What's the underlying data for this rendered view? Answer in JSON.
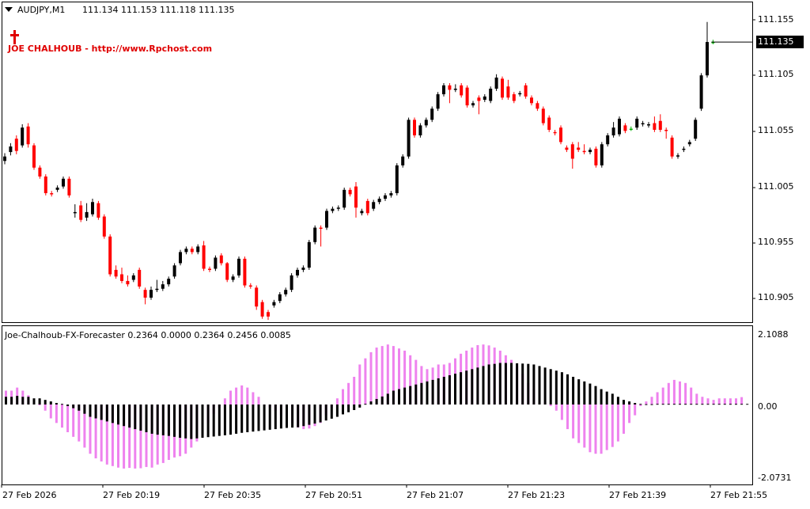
{
  "main_header": {
    "symbol_timeframe": "AUDJPY,M1",
    "ohlc": "111.134 111.153 111.118 111.135"
  },
  "watermark": {
    "text": "JOE CHALHOUB - http://www.Rpchost.com",
    "color": "#e00000",
    "icon": "cross-icon"
  },
  "price_axis": {
    "labels": [
      "111.155",
      "111.105",
      "111.055",
      "111.005",
      "110.955",
      "110.905"
    ],
    "current_price": "111.135"
  },
  "indicator": {
    "header": "Joe-Chalhoub-FX-Forecaster 0.2364 0.0000 0.2364 0.2456 0.0085",
    "scale_labels": [
      "2.1088",
      "0.00",
      "-2.0731"
    ]
  },
  "time_axis": {
    "labels": [
      "27 Feb 2026",
      "27 Feb 20:19",
      "27 Feb 20:35",
      "27 Feb 20:51",
      "27 Feb 21:07",
      "27 Feb 21:23",
      "27 Feb 21:39",
      "27 Feb 21:55"
    ]
  },
  "colors": {
    "bull_candle": "#000000",
    "bear_candle": "#ff0000",
    "doji_candle": "#00b000",
    "histogram_pink": "#ee82ee",
    "histogram_black": "#000000",
    "background": "#ffffff",
    "frame": "#000000"
  },
  "chart_data": [
    {
      "type": "candlestick",
      "title": "AUDJPY,M1",
      "price_range": [
        110.88,
        111.165
      ],
      "candles": [
        {
          "o": 111.028,
          "c": 111.032,
          "h": 111.035,
          "l": 111.025
        },
        {
          "o": 111.036,
          "c": 111.041,
          "h": 111.044,
          "l": 111.033
        },
        {
          "o": 111.048,
          "c": 111.037,
          "h": 111.051,
          "l": 111.034
        },
        {
          "o": 111.042,
          "c": 111.058,
          "h": 111.061,
          "l": 111.04
        },
        {
          "o": 111.059,
          "c": 111.043,
          "h": 111.062,
          "l": 111.04
        },
        {
          "o": 111.042,
          "c": 111.022,
          "h": 111.044,
          "l": 111.02
        },
        {
          "o": 111.022,
          "c": 111.014,
          "h": 111.024,
          "l": 111.012
        },
        {
          "o": 111.014,
          "c": 110.999,
          "h": 111.016,
          "l": 110.997
        },
        {
          "o": 110.999,
          "c": 110.998,
          "h": 111.001,
          "l": 110.996
        },
        {
          "o": 111.002,
          "c": 111.004,
          "h": 111.006,
          "l": 111.0
        },
        {
          "o": 111.005,
          "c": 111.012,
          "h": 111.014,
          "l": 111.003
        },
        {
          "o": 111.012,
          "c": 110.997,
          "h": 111.014,
          "l": 110.995
        },
        {
          "o": 110.981,
          "c": 110.982,
          "h": 110.989,
          "l": 110.977
        },
        {
          "o": 110.988,
          "c": 110.975,
          "h": 110.992,
          "l": 110.973
        },
        {
          "o": 110.977,
          "c": 110.982,
          "h": 110.99,
          "l": 110.974
        },
        {
          "o": 110.98,
          "c": 110.991,
          "h": 110.994,
          "l": 110.978
        },
        {
          "o": 110.99,
          "c": 110.977,
          "h": 110.992,
          "l": 110.975
        },
        {
          "o": 110.978,
          "c": 110.96,
          "h": 110.98,
          "l": 110.958
        },
        {
          "o": 110.96,
          "c": 110.926,
          "h": 110.962,
          "l": 110.924
        },
        {
          "o": 110.93,
          "c": 110.924,
          "h": 110.934,
          "l": 110.922
        },
        {
          "o": 110.926,
          "c": 110.92,
          "h": 110.932,
          "l": 110.918
        },
        {
          "o": 110.92,
          "c": 110.917,
          "h": 110.925,
          "l": 110.915
        },
        {
          "o": 110.921,
          "c": 110.925,
          "h": 110.927,
          "l": 110.919
        },
        {
          "o": 110.93,
          "c": 110.915,
          "h": 110.932,
          "l": 110.913
        },
        {
          "o": 110.912,
          "c": 110.905,
          "h": 110.914,
          "l": 110.899
        },
        {
          "o": 110.905,
          "c": 110.912,
          "h": 110.915,
          "l": 110.903
        },
        {
          "o": 110.912,
          "c": 110.913,
          "h": 110.921,
          "l": 110.91
        },
        {
          "o": 110.913,
          "c": 110.917,
          "h": 110.92,
          "l": 110.911
        },
        {
          "o": 110.917,
          "c": 110.922,
          "h": 110.924,
          "l": 110.915
        },
        {
          "o": 110.924,
          "c": 110.934,
          "h": 110.936,
          "l": 110.922
        },
        {
          "o": 110.936,
          "c": 110.946,
          "h": 110.948,
          "l": 110.934
        },
        {
          "o": 110.946,
          "c": 110.949,
          "h": 110.951,
          "l": 110.944
        },
        {
          "o": 110.949,
          "c": 110.946,
          "h": 110.951,
          "l": 110.944
        },
        {
          "o": 110.946,
          "c": 110.951,
          "h": 110.953,
          "l": 110.944
        },
        {
          "o": 110.952,
          "c": 110.931,
          "h": 110.956,
          "l": 110.929
        },
        {
          "o": 110.931,
          "c": 110.93,
          "h": 110.933,
          "l": 110.928
        },
        {
          "o": 110.931,
          "c": 110.941,
          "h": 110.943,
          "l": 110.929
        },
        {
          "o": 110.943,
          "c": 110.936,
          "h": 110.945,
          "l": 110.934
        },
        {
          "o": 110.936,
          "c": 110.921,
          "h": 110.937,
          "l": 110.919
        },
        {
          "o": 110.921,
          "c": 110.924,
          "h": 110.926,
          "l": 110.919
        },
        {
          "o": 110.925,
          "c": 110.94,
          "h": 110.942,
          "l": 110.923
        },
        {
          "o": 110.94,
          "c": 110.916,
          "h": 110.942,
          "l": 110.914
        },
        {
          "o": 110.916,
          "c": 110.915,
          "h": 110.918,
          "l": 110.913
        },
        {
          "o": 110.914,
          "c": 110.897,
          "h": 110.916,
          "l": 110.894
        },
        {
          "o": 110.901,
          "c": 110.888,
          "h": 110.903,
          "l": 110.886
        },
        {
          "o": 110.892,
          "c": 110.888,
          "h": 110.894,
          "l": 110.885
        },
        {
          "o": 110.898,
          "c": 110.901,
          "h": 110.903,
          "l": 110.896
        },
        {
          "o": 110.902,
          "c": 110.908,
          "h": 110.91,
          "l": 110.9
        },
        {
          "o": 110.908,
          "c": 110.912,
          "h": 110.914,
          "l": 110.906
        },
        {
          "o": 110.912,
          "c": 110.925,
          "h": 110.927,
          "l": 110.91
        },
        {
          "o": 110.925,
          "c": 110.93,
          "h": 110.932,
          "l": 110.923
        },
        {
          "o": 110.93,
          "c": 110.932,
          "h": 110.934,
          "l": 110.928
        },
        {
          "o": 110.932,
          "c": 110.955,
          "h": 110.957,
          "l": 110.93
        },
        {
          "o": 110.955,
          "c": 110.968,
          "h": 110.97,
          "l": 110.953
        },
        {
          "o": 110.968,
          "c": 110.967,
          "h": 110.97,
          "l": 110.951
        },
        {
          "o": 110.968,
          "c": 110.983,
          "h": 110.985,
          "l": 110.966
        },
        {
          "o": 110.983,
          "c": 110.985,
          "h": 110.987,
          "l": 110.981
        },
        {
          "o": 110.985,
          "c": 110.986,
          "h": 110.988,
          "l": 110.983
        },
        {
          "o": 110.986,
          "c": 111.002,
          "h": 111.004,
          "l": 110.984
        },
        {
          "o": 111.002,
          "c": 110.998,
          "h": 111.004,
          "l": 110.996
        },
        {
          "o": 111.005,
          "c": 110.986,
          "h": 111.009,
          "l": 110.977
        },
        {
          "o": 110.981,
          "c": 110.983,
          "h": 110.985,
          "l": 110.979
        },
        {
          "o": 110.992,
          "c": 110.981,
          "h": 110.994,
          "l": 110.979
        },
        {
          "o": 110.985,
          "c": 110.991,
          "h": 110.993,
          "l": 110.983
        },
        {
          "o": 110.991,
          "c": 110.994,
          "h": 110.996,
          "l": 110.989
        },
        {
          "o": 110.994,
          "c": 110.997,
          "h": 110.999,
          "l": 110.992
        },
        {
          "o": 110.997,
          "c": 110.999,
          "h": 111.001,
          "l": 110.995
        },
        {
          "o": 110.999,
          "c": 111.024,
          "h": 111.026,
          "l": 110.997
        },
        {
          "o": 111.024,
          "c": 111.032,
          "h": 111.034,
          "l": 111.022
        },
        {
          "o": 111.032,
          "c": 111.065,
          "h": 111.067,
          "l": 111.03
        },
        {
          "o": 111.065,
          "c": 111.051,
          "h": 111.067,
          "l": 111.049
        },
        {
          "o": 111.051,
          "c": 111.06,
          "h": 111.062,
          "l": 111.049
        },
        {
          "o": 111.06,
          "c": 111.065,
          "h": 111.067,
          "l": 111.058
        },
        {
          "o": 111.065,
          "c": 111.075,
          "h": 111.077,
          "l": 111.063
        },
        {
          "o": 111.075,
          "c": 111.088,
          "h": 111.09,
          "l": 111.073
        },
        {
          "o": 111.088,
          "c": 111.096,
          "h": 111.098,
          "l": 111.086
        },
        {
          "o": 111.096,
          "c": 111.092,
          "h": 111.098,
          "l": 111.08
        },
        {
          "o": 111.092,
          "c": 111.093,
          "h": 111.097,
          "l": 111.09
        },
        {
          "o": 111.096,
          "c": 111.087,
          "h": 111.098,
          "l": 111.085
        },
        {
          "o": 111.094,
          "c": 111.078,
          "h": 111.096,
          "l": 111.076
        },
        {
          "o": 111.078,
          "c": 111.08,
          "h": 111.082,
          "l": 111.076
        },
        {
          "o": 111.085,
          "c": 111.082,
          "h": 111.087,
          "l": 111.07
        },
        {
          "o": 111.083,
          "c": 111.086,
          "h": 111.088,
          "l": 111.081
        },
        {
          "o": 111.082,
          "c": 111.093,
          "h": 111.095,
          "l": 111.08
        },
        {
          "o": 111.093,
          "c": 111.103,
          "h": 111.106,
          "l": 111.091
        },
        {
          "o": 111.102,
          "c": 111.085,
          "h": 111.104,
          "l": 111.083
        },
        {
          "o": 111.095,
          "c": 111.085,
          "h": 111.101,
          "l": 111.083
        },
        {
          "o": 111.088,
          "c": 111.082,
          "h": 111.09,
          "l": 111.08
        },
        {
          "o": 111.088,
          "c": 111.089,
          "h": 111.091,
          "l": 111.086
        },
        {
          "o": 111.096,
          "c": 111.086,
          "h": 111.098,
          "l": 111.084
        },
        {
          "o": 111.085,
          "c": 111.08,
          "h": 111.087,
          "l": 111.078
        },
        {
          "o": 111.08,
          "c": 111.075,
          "h": 111.082,
          "l": 111.073
        },
        {
          "o": 111.075,
          "c": 111.062,
          "h": 111.077,
          "l": 111.06
        },
        {
          "o": 111.067,
          "c": 111.056,
          "h": 111.069,
          "l": 111.054
        },
        {
          "o": 111.054,
          "c": 111.053,
          "h": 111.056,
          "l": 111.051
        },
        {
          "o": 111.058,
          "c": 111.045,
          "h": 111.06,
          "l": 111.043
        },
        {
          "o": 111.04,
          "c": 111.038,
          "h": 111.042,
          "l": 111.036
        },
        {
          "o": 111.043,
          "c": 111.03,
          "h": 111.045,
          "l": 111.021
        },
        {
          "o": 111.04,
          "c": 111.038,
          "h": 111.045,
          "l": 111.036
        },
        {
          "o": 111.037,
          "c": 111.036,
          "h": 111.043,
          "l": 111.034
        },
        {
          "o": 111.036,
          "c": 111.038,
          "h": 111.04,
          "l": 111.034
        },
        {
          "o": 111.039,
          "c": 111.024,
          "h": 111.041,
          "l": 111.022
        },
        {
          "o": 111.024,
          "c": 111.043,
          "h": 111.045,
          "l": 111.022
        },
        {
          "o": 111.043,
          "c": 111.051,
          "h": 111.053,
          "l": 111.041
        },
        {
          "o": 111.051,
          "c": 111.058,
          "h": 111.063,
          "l": 111.049
        },
        {
          "o": 111.052,
          "c": 111.066,
          "h": 111.068,
          "l": 111.05
        },
        {
          "o": 111.06,
          "c": 111.055,
          "h": 111.062,
          "l": 111.053
        },
        {
          "o": 111.057,
          "c": 111.057,
          "h": 111.059,
          "l": 111.055
        },
        {
          "o": 111.058,
          "c": 111.066,
          "h": 111.068,
          "l": 111.056
        },
        {
          "o": 111.061,
          "c": 111.062,
          "h": 111.064,
          "l": 111.059
        },
        {
          "o": 111.06,
          "c": 111.061,
          "h": 111.063,
          "l": 111.058
        },
        {
          "o": 111.062,
          "c": 111.056,
          "h": 111.068,
          "l": 111.054
        },
        {
          "o": 111.064,
          "c": 111.056,
          "h": 111.07,
          "l": 111.054
        },
        {
          "o": 111.056,
          "c": 111.055,
          "h": 111.058,
          "l": 111.048
        },
        {
          "o": 111.049,
          "c": 111.032,
          "h": 111.051,
          "l": 111.03
        },
        {
          "o": 111.032,
          "c": 111.033,
          "h": 111.035,
          "l": 111.03
        },
        {
          "o": 111.038,
          "c": 111.039,
          "h": 111.041,
          "l": 111.036
        },
        {
          "o": 111.043,
          "c": 111.045,
          "h": 111.047,
          "l": 111.041
        },
        {
          "o": 111.048,
          "c": 111.065,
          "h": 111.067,
          "l": 111.046
        },
        {
          "o": 111.075,
          "c": 111.105,
          "h": 111.107,
          "l": 111.073
        },
        {
          "o": 111.105,
          "c": 111.135,
          "h": 111.153,
          "l": 111.103
        },
        {
          "o": 111.135,
          "c": 111.135,
          "h": 111.137,
          "l": 111.133
        }
      ]
    },
    {
      "type": "histogram",
      "title": "Joe-Chalhoub-FX-Forecaster",
      "ylim": [
        -2.0731,
        2.1088
      ],
      "pink": [
        0.45,
        0.45,
        0.55,
        0.45,
        0.3,
        0.1,
        0,
        -0.2,
        -0.45,
        -0.6,
        -0.75,
        -0.9,
        -1.05,
        -1.2,
        -1.4,
        -1.6,
        -1.75,
        -1.85,
        -1.95,
        -2.0,
        -2.05,
        -2.08,
        -2.06,
        -2.08,
        -2.07,
        -2.03,
        -2.05,
        -1.95,
        -1.9,
        -1.8,
        -1.72,
        -1.68,
        -1.6,
        -1.4,
        -1.2,
        -0.9,
        -0.6,
        -0.3,
        -0.1,
        0.2,
        0.45,
        0.55,
        0.62,
        0.55,
        0.4,
        0.25,
        0,
        -0.1,
        -0.2,
        -0.35,
        -0.5,
        -0.6,
        -0.75,
        -0.8,
        -0.78,
        -0.7,
        -0.6,
        -0.35,
        -0.1,
        0.2,
        0.5,
        0.7,
        0.9,
        1.3,
        1.5,
        1.7,
        1.85,
        1.9,
        1.95,
        1.9,
        1.82,
        1.75,
        1.6,
        1.45,
        1.25,
        1.15,
        1.2,
        1.3,
        1.3,
        1.35,
        1.5,
        1.65,
        1.75,
        1.85,
        1.93,
        1.95,
        1.92,
        1.85,
        1.75,
        1.6,
        1.45,
        1.25,
        1.0,
        0.7,
        0.5,
        0.3,
        0.1,
        -0.05,
        -0.2,
        -0.5,
        -0.8,
        -1.1,
        -1.25,
        -1.4,
        -1.55,
        -1.6,
        -1.6,
        -1.48,
        -1.38,
        -1.2,
        -0.95,
        -0.6,
        -0.35,
        -0.05,
        0.1,
        0.25,
        0.4,
        0.55,
        0.7,
        0.8,
        0.75,
        0.7,
        0.55,
        0.35,
        0.25,
        0.2,
        0.15,
        0.2,
        0.2,
        0.2,
        0.2,
        0.24
      ],
      "black": [
        0.25,
        0.25,
        0.28,
        0.25,
        0.25,
        0.2,
        0.2,
        0.15,
        0.1,
        0.05,
        0.02,
        -0.05,
        -0.12,
        -0.2,
        -0.3,
        -0.4,
        -0.45,
        -0.5,
        -0.55,
        -0.6,
        -0.65,
        -0.7,
        -0.75,
        -0.8,
        -0.85,
        -0.9,
        -0.95,
        -0.98,
        -1.0,
        -1.02,
        -1.05,
        -1.08,
        -1.1,
        -1.12,
        -1.1,
        -1.08,
        -1.06,
        -1.04,
        -1.02,
        -1.0,
        -0.98,
        -0.95,
        -0.92,
        -0.9,
        -0.88,
        -0.86,
        -0.84,
        -0.82,
        -0.8,
        -0.78,
        -0.76,
        -0.75,
        -0.74,
        -0.7,
        -0.66,
        -0.62,
        -0.58,
        -0.52,
        -0.46,
        -0.4,
        -0.32,
        -0.25,
        -0.18,
        -0.1,
        0.02,
        0.1,
        0.18,
        0.26,
        0.35,
        0.45,
        0.5,
        0.55,
        0.6,
        0.65,
        0.7,
        0.75,
        0.8,
        0.85,
        0.9,
        0.95,
        1.0,
        1.05,
        1.1,
        1.15,
        1.2,
        1.25,
        1.3,
        1.32,
        1.35,
        1.35,
        1.35,
        1.34,
        1.33,
        1.32,
        1.3,
        1.25,
        1.2,
        1.15,
        1.1,
        1.05,
        0.98,
        0.9,
        0.82,
        0.75,
        0.68,
        0.6,
        0.5,
        0.42,
        0.35,
        0.25,
        0.15,
        0.1,
        0.05,
        0.02,
        0.01,
        0.01,
        0.02,
        0.02,
        0.02,
        0.02,
        0.02,
        0.02,
        0.02,
        0.02,
        0.02,
        0.02,
        0.02,
        0.02,
        0.02,
        0.02,
        0.02,
        0.02,
        0.02
      ]
    }
  ]
}
